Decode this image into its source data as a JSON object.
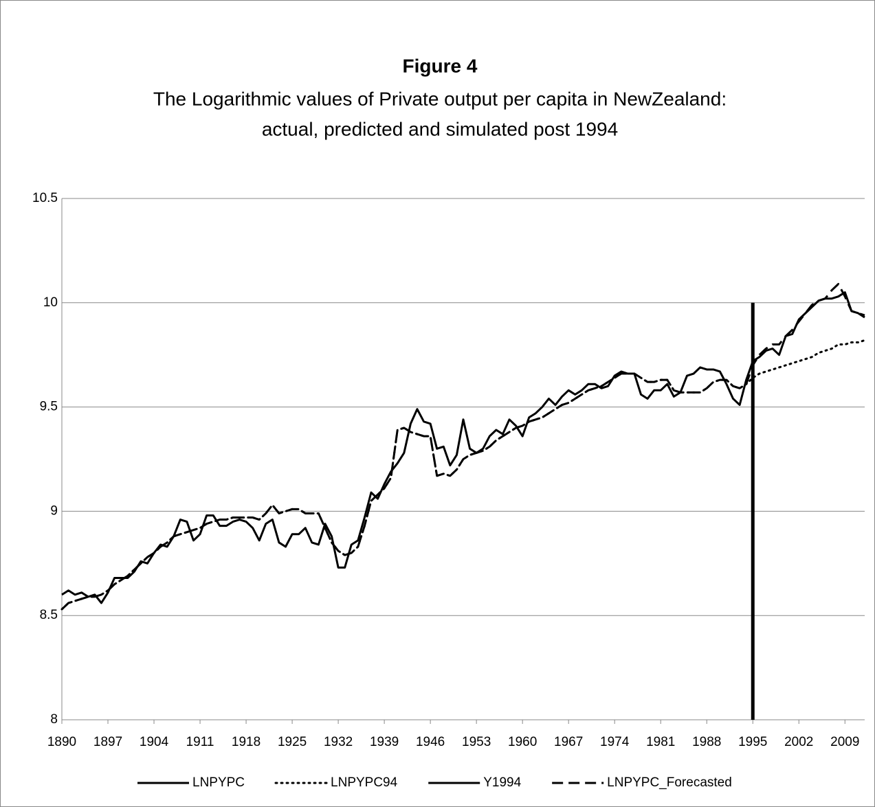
{
  "chart_data": {
    "type": "line",
    "title": "Figure 4",
    "subtitle": [
      "The Logarithmic values of Private output per capita in NewZealand:",
      "actual, predicted and simulated post 1994"
    ],
    "x": [
      1890,
      1891,
      1892,
      1893,
      1894,
      1895,
      1896,
      1897,
      1898,
      1899,
      1900,
      1901,
      1902,
      1903,
      1904,
      1905,
      1906,
      1907,
      1908,
      1909,
      1910,
      1911,
      1912,
      1913,
      1914,
      1915,
      1916,
      1917,
      1918,
      1919,
      1920,
      1921,
      1922,
      1923,
      1924,
      1925,
      1926,
      1927,
      1928,
      1929,
      1930,
      1931,
      1932,
      1933,
      1934,
      1935,
      1936,
      1937,
      1938,
      1939,
      1940,
      1941,
      1942,
      1943,
      1944,
      1945,
      1946,
      1947,
      1948,
      1949,
      1950,
      1951,
      1952,
      1953,
      1954,
      1955,
      1956,
      1957,
      1958,
      1959,
      1960,
      1961,
      1962,
      1963,
      1964,
      1965,
      1966,
      1967,
      1968,
      1969,
      1970,
      1971,
      1972,
      1973,
      1974,
      1975,
      1976,
      1977,
      1978,
      1979,
      1980,
      1981,
      1982,
      1983,
      1984,
      1985,
      1986,
      1987,
      1988,
      1989,
      1990,
      1991,
      1992,
      1993,
      1994,
      1995,
      1996,
      1997,
      1998,
      1999,
      2000,
      2001,
      2002,
      2003,
      2004,
      2005,
      2006,
      2007,
      2008,
      2009,
      2010,
      2011,
      2012
    ],
    "series": [
      {
        "name": "LNPYPC",
        "color": "#000000",
        "style": "solid",
        "values": [
          8.6,
          8.62,
          8.6,
          8.61,
          8.59,
          8.6,
          8.56,
          8.61,
          8.68,
          8.68,
          8.68,
          8.71,
          8.76,
          8.75,
          8.8,
          8.84,
          8.83,
          8.88,
          8.96,
          8.95,
          8.86,
          8.89,
          8.98,
          8.98,
          8.93,
          8.93,
          8.95,
          8.96,
          8.95,
          8.92,
          8.86,
          8.94,
          8.96,
          8.85,
          8.83,
          8.89,
          8.89,
          8.92,
          8.85,
          8.84,
          8.94,
          8.88,
          8.73,
          8.73,
          8.84,
          8.86,
          8.97,
          9.09,
          9.06,
          9.13,
          9.19,
          9.23,
          9.28,
          9.42,
          9.49,
          9.43,
          9.42,
          9.3,
          9.31,
          9.22,
          9.27,
          9.44,
          9.3,
          9.28,
          9.3,
          9.36,
          9.39,
          9.37,
          9.44,
          9.41,
          9.36,
          9.45,
          9.47,
          9.5,
          9.54,
          9.51,
          9.55,
          9.58,
          9.56,
          9.58,
          9.61,
          9.61,
          9.59,
          9.6,
          9.65,
          9.67,
          9.66,
          9.66,
          9.56,
          9.54,
          9.58,
          9.58,
          9.61,
          9.55,
          9.57,
          9.65,
          9.66,
          9.69,
          9.68,
          9.68,
          9.67,
          9.61,
          9.54,
          9.51,
          9.63,
          9.72,
          9.74,
          9.77,
          9.78,
          9.75,
          9.84,
          9.85,
          9.92,
          9.95,
          9.98,
          10.01,
          10.02,
          10.02,
          10.03,
          10.05,
          9.96,
          9.95,
          9.93
        ]
      },
      {
        "name": "LNPYPC94",
        "color": "#000000",
        "style": "dotted",
        "values": [
          8.53,
          8.56,
          8.57,
          8.58,
          8.59,
          8.59,
          8.6,
          8.62,
          8.65,
          8.67,
          8.69,
          8.72,
          8.75,
          8.78,
          8.8,
          8.83,
          8.85,
          8.88,
          8.89,
          8.9,
          8.91,
          8.92,
          8.94,
          8.95,
          8.96,
          8.96,
          8.97,
          8.97,
          8.97,
          8.97,
          8.96,
          8.99,
          9.03,
          8.99,
          9.0,
          9.01,
          9.01,
          8.99,
          8.99,
          8.99,
          8.92,
          8.85,
          8.81,
          8.79,
          8.8,
          8.83,
          8.93,
          9.05,
          9.08,
          9.11,
          9.16,
          9.39,
          9.4,
          9.38,
          9.37,
          9.36,
          9.36,
          9.17,
          9.18,
          9.17,
          9.2,
          9.25,
          9.27,
          9.28,
          9.29,
          9.31,
          9.34,
          9.36,
          9.38,
          9.4,
          9.41,
          9.43,
          9.44,
          9.45,
          9.47,
          9.49,
          9.51,
          9.52,
          9.54,
          9.56,
          9.58,
          9.59,
          9.6,
          9.62,
          9.64,
          9.66,
          9.66,
          9.66,
          9.64,
          9.62,
          9.62,
          9.63,
          9.63,
          9.58,
          9.57,
          9.57,
          9.57,
          9.57,
          9.59,
          9.62,
          9.63,
          9.63,
          9.6,
          9.59,
          9.61,
          9.64,
          9.66,
          9.67,
          9.68,
          9.69,
          9.7,
          9.71,
          9.72,
          9.73,
          9.74,
          9.76,
          9.77,
          9.78,
          9.8,
          9.8,
          9.81,
          9.81,
          9.82
        ]
      },
      {
        "name": "Y1994",
        "color": "#000000",
        "style": "bar",
        "x": [
          1995,
          1995
        ],
        "values": [
          8,
          10
        ]
      },
      {
        "name": "LNPYPC_Forecasted",
        "color": "#000000",
        "style": "dashed",
        "values": [
          8.53,
          8.56,
          8.57,
          8.58,
          8.59,
          8.59,
          8.6,
          8.62,
          8.65,
          8.67,
          8.69,
          8.72,
          8.75,
          8.78,
          8.8,
          8.83,
          8.85,
          8.88,
          8.89,
          8.9,
          8.91,
          8.92,
          8.94,
          8.95,
          8.96,
          8.96,
          8.97,
          8.97,
          8.97,
          8.97,
          8.96,
          8.99,
          9.03,
          8.99,
          9.0,
          9.01,
          9.01,
          8.99,
          8.99,
          8.99,
          8.92,
          8.85,
          8.81,
          8.79,
          8.8,
          8.83,
          8.93,
          9.05,
          9.08,
          9.11,
          9.16,
          9.39,
          9.4,
          9.38,
          9.37,
          9.36,
          9.36,
          9.17,
          9.18,
          9.17,
          9.2,
          9.25,
          9.27,
          9.28,
          9.29,
          9.31,
          9.34,
          9.36,
          9.38,
          9.4,
          9.41,
          9.43,
          9.44,
          9.45,
          9.47,
          9.49,
          9.51,
          9.52,
          9.54,
          9.56,
          9.58,
          9.59,
          9.6,
          9.62,
          9.64,
          9.66,
          9.66,
          9.66,
          9.64,
          9.62,
          9.62,
          9.63,
          9.63,
          9.58,
          9.57,
          9.57,
          9.57,
          9.57,
          9.59,
          9.62,
          9.63,
          9.63,
          9.6,
          9.59,
          9.61,
          9.7,
          9.75,
          9.78,
          9.8,
          9.8,
          9.84,
          9.87,
          9.91,
          9.95,
          9.99,
          10.01,
          10.02,
          10.06,
          10.09,
          10.03,
          9.96,
          9.95,
          9.94
        ]
      }
    ],
    "xlim": [
      1890,
      2012
    ],
    "xticks": [
      1890,
      1897,
      1904,
      1911,
      1918,
      1925,
      1932,
      1939,
      1946,
      1953,
      1960,
      1967,
      1974,
      1981,
      1988,
      1995,
      2002,
      2009
    ],
    "ylim": [
      8,
      10.5
    ],
    "yticks": [
      8,
      8.5,
      9,
      9.5,
      10,
      10.5
    ],
    "grid": true,
    "legend": "bottom"
  }
}
